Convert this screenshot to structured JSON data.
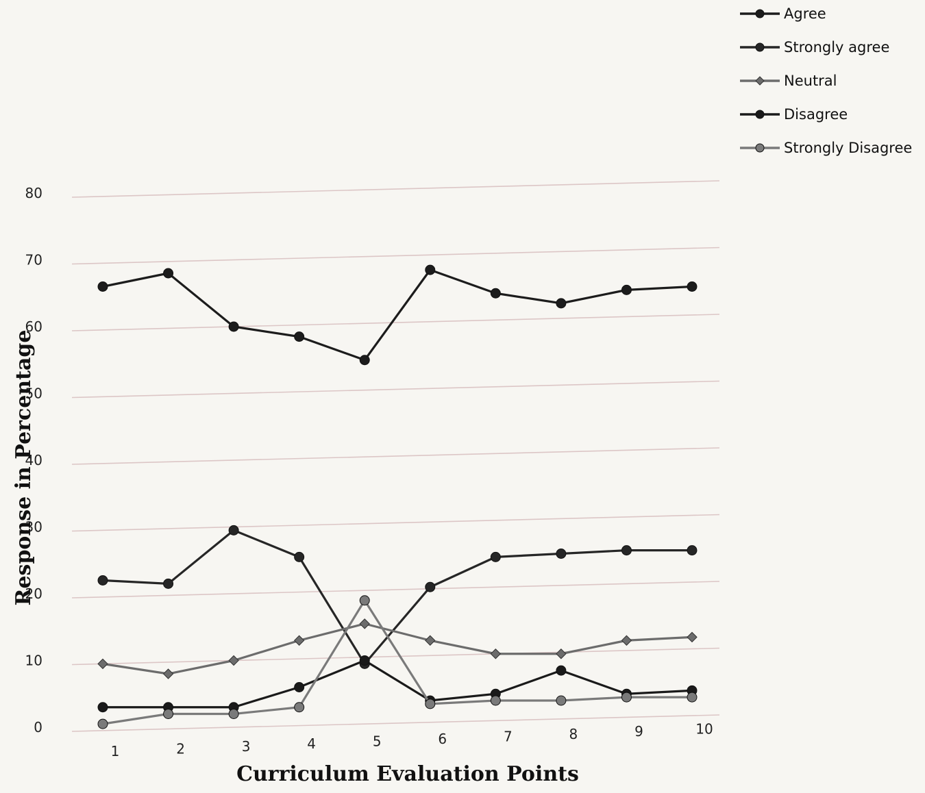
{
  "chart_data": {
    "type": "line",
    "title": "",
    "xlabel": "Curriculum Evaluation Points",
    "ylabel": "Response in Percentage",
    "x": [
      1,
      2,
      3,
      4,
      5,
      6,
      7,
      8,
      9,
      10
    ],
    "x_tick_labels": [
      "1",
      "2",
      "3",
      "4",
      "5",
      "6",
      "7",
      "8",
      "9",
      "10"
    ],
    "y_ticks": [
      0,
      10,
      20,
      30,
      40,
      50,
      60,
      70,
      80
    ],
    "ylim": [
      0,
      80
    ],
    "grid": true,
    "legend_position": "top-right",
    "series": [
      {
        "name": "Agree",
        "color": "#1c1c1c",
        "marker": "circle",
        "values": [
          66,
          68,
          60,
          58.5,
          55,
          68.5,
          65,
          63.5,
          65.5,
          66
        ]
      },
      {
        "name": "Strongly agree",
        "color": "#262626",
        "marker": "circle",
        "values": [
          22,
          21.5,
          29.5,
          25.5,
          9.5,
          21,
          25.5,
          26,
          26.5,
          26.5
        ]
      },
      {
        "name": "Neutral",
        "color": "#6c6c6c",
        "marker": "diamond",
        "values": [
          9.5,
          8,
          10,
          13,
          15.5,
          13,
          11,
          11,
          13,
          13.5
        ]
      },
      {
        "name": "Disagree",
        "color": "#1a1a1a",
        "marker": "circle",
        "values": [
          3,
          3,
          3,
          6,
          10,
          4,
          5,
          8.5,
          5,
          5.5
        ]
      },
      {
        "name": "Strongly Disagree",
        "color": "#7a7a7a",
        "marker": "circle",
        "values": [
          0.5,
          2,
          2,
          3,
          19,
          3.5,
          4,
          4,
          4.5,
          4.5
        ]
      }
    ]
  }
}
